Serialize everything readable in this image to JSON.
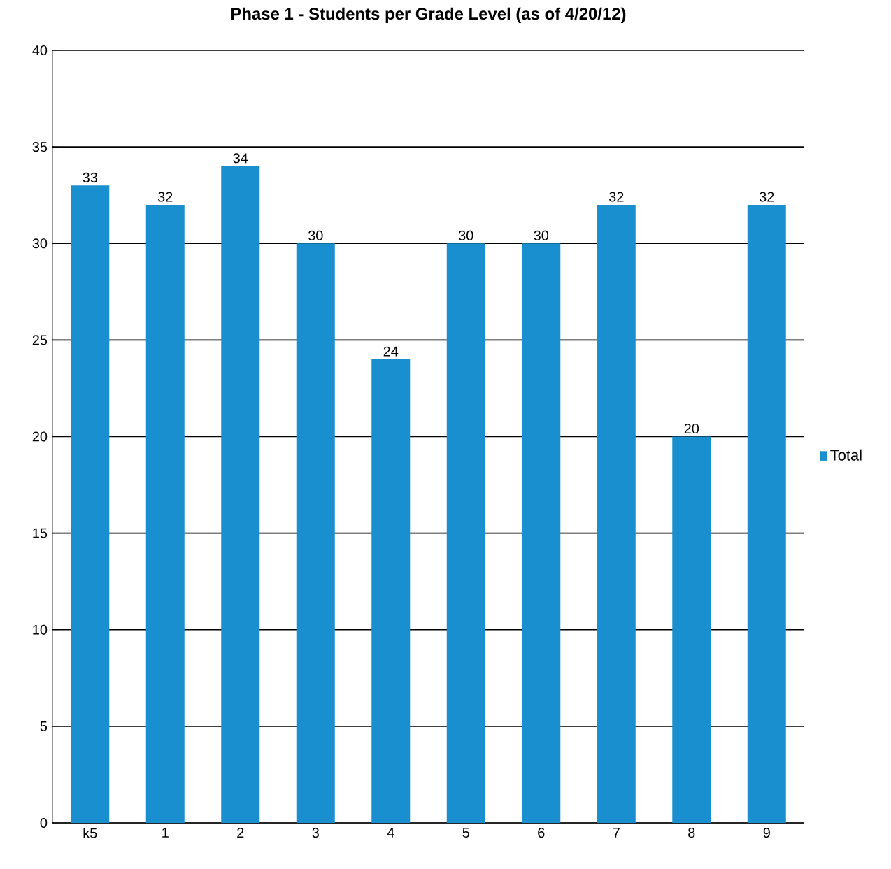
{
  "chart_data": {
    "type": "bar",
    "title": "**Phase 1 - Students per Grade Level (as of 4/20/12)**",
    "categories": [
      "k5",
      "1",
      "2",
      "3",
      "4",
      "5",
      "6",
      "7",
      "8",
      "9"
    ],
    "series": [
      {
        "name": "Total",
        "color": "#1a8fd0",
        "values": [
          33,
          32,
          34,
          30,
          24,
          30,
          30,
          32,
          20,
          32
        ]
      }
    ],
    "ylim": [
      0,
      40
    ],
    "yticks": [
      0,
      5,
      10,
      15,
      20,
      25,
      30,
      35,
      40
    ],
    "grid": "y",
    "legend": "right",
    "data_labels": true
  }
}
